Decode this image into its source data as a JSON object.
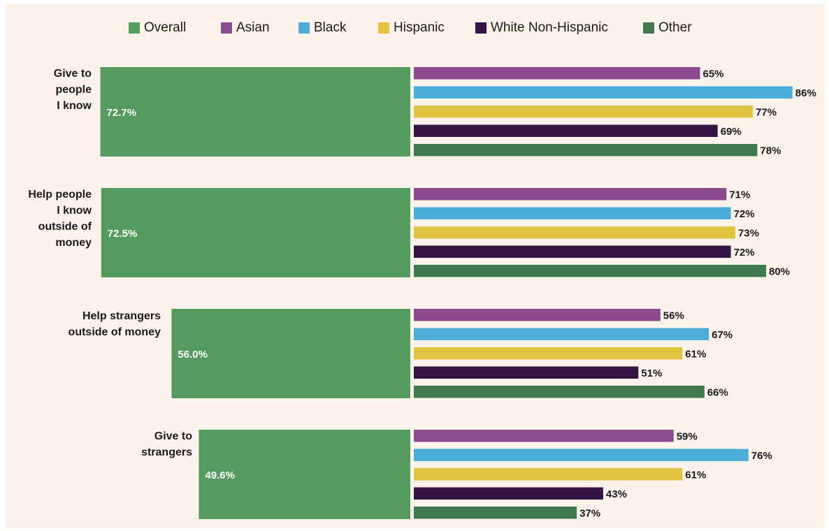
{
  "chart_data": {
    "type": "bar",
    "orientation": "horizontal",
    "title": "",
    "xlabel": "",
    "ylabel": "",
    "xlim": [
      0,
      100
    ],
    "legend_placement": "top",
    "grid": false,
    "categories": [
      "Give to\npeople\nI know",
      "Help people\nI know\noutside of\nmoney",
      "Help strangers\noutside of money",
      "Give to\nstrangers"
    ],
    "overall": {
      "name": "Overall",
      "color": "#559b5f",
      "values": [
        72.7,
        72.5,
        56.0,
        49.6
      ],
      "labels": [
        "72.7%",
        "72.5%",
        "56.0%",
        "49.6%"
      ]
    },
    "series": [
      {
        "name": "Asian",
        "color": "#8c4a8e",
        "values": [
          65,
          71,
          56,
          59
        ],
        "labels": [
          "65%",
          "71%",
          "56%",
          "59%"
        ]
      },
      {
        "name": "Black",
        "color": "#4aaed8",
        "values": [
          86,
          72,
          67,
          76
        ],
        "labels": [
          "86%",
          "72%",
          "67%",
          "76%"
        ]
      },
      {
        "name": "Hispanic",
        "color": "#e0c33e",
        "values": [
          77,
          73,
          61,
          61
        ],
        "labels": [
          "77%",
          "73%",
          "61%",
          "61%"
        ]
      },
      {
        "name": "White Non-Hispanic",
        "color": "#361444",
        "values": [
          69,
          72,
          51,
          43
        ],
        "labels": [
          "69%",
          "72%",
          "51%",
          "43%"
        ]
      },
      {
        "name": "Other",
        "color": "#3f7a4e",
        "values": [
          78,
          80,
          66,
          37
        ],
        "labels": [
          "78%",
          "80%",
          "66%",
          "37%"
        ]
      }
    ]
  }
}
